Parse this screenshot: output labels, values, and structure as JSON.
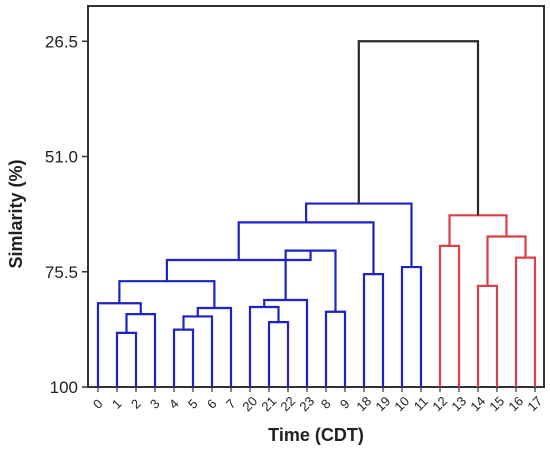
{
  "chart_data": {
    "type": "dendrogram",
    "xlabel": "Time (CDT)",
    "ylabel": "Simlarity (%)",
    "ylim": [
      100,
      19
    ],
    "yticks": [
      26.5,
      51.0,
      75.5,
      100
    ],
    "ytick_labels": [
      "26.5",
      "51.0",
      "75.5",
      "100"
    ],
    "leaf_order": [
      "0",
      "1",
      "2",
      "3",
      "4",
      "5",
      "6",
      "7",
      "20",
      "21",
      "22",
      "23",
      "8",
      "9",
      "18",
      "19",
      "10",
      "11",
      "12",
      "13",
      "14",
      "15",
      "16",
      "17"
    ],
    "colors": {
      "blue": "#1f22c4",
      "red": "#d94048",
      "black": "#2a2a2a",
      "axis": "#333333"
    },
    "merges": [
      {
        "a": "L1",
        "b": "L2",
        "height": 88.5,
        "color": "blue"
      },
      {
        "a": "C0",
        "b": "L3",
        "height": 84.5,
        "color": "blue"
      },
      {
        "a": "L0",
        "b": "C1",
        "height": 82.2,
        "color": "blue"
      },
      {
        "a": "L4",
        "b": "L5",
        "height": 87.8,
        "color": "blue"
      },
      {
        "a": "L6",
        "b": "C3",
        "height": 85.0,
        "color": "blue"
      },
      {
        "a": "C4",
        "b": "L7",
        "height": 83.2,
        "color": "blue"
      },
      {
        "a": "C2",
        "b": "C5",
        "height": 77.5,
        "color": "blue"
      },
      {
        "a": "L21",
        "b": "L22",
        "height": 86.2,
        "color": "blue"
      },
      {
        "a": "L20",
        "b": "C7",
        "height": 83.0,
        "color": "blue"
      },
      {
        "a": "C8",
        "b": "L23",
        "height": 81.5,
        "color": "blue"
      },
      {
        "a": "L8",
        "b": "L9",
        "height": 84.0,
        "color": "blue"
      },
      {
        "a": "C9",
        "b": "C10",
        "height": 71.0,
        "color": "blue"
      },
      {
        "a": "C6",
        "b": "C11",
        "height": 73.0,
        "color": "blue"
      },
      {
        "a": "L18",
        "b": "L19",
        "height": 76.0,
        "color": "blue"
      },
      {
        "a": "C12",
        "b": "C13",
        "height": 65.0,
        "color": "blue"
      },
      {
        "a": "L10",
        "b": "L11",
        "height": 74.5,
        "color": "blue"
      },
      {
        "a": "C14",
        "b": "C15",
        "height": 61.0,
        "color": "blue"
      },
      {
        "a": "L12",
        "b": "L13",
        "height": 70.0,
        "color": "red"
      },
      {
        "a": "L14",
        "b": "L15",
        "height": 78.5,
        "color": "red"
      },
      {
        "a": "L16",
        "b": "L17",
        "height": 72.5,
        "color": "red"
      },
      {
        "a": "C18",
        "b": "C19",
        "height": 68.0,
        "color": "red"
      },
      {
        "a": "C17",
        "b": "C20",
        "height": 63.5,
        "color": "red"
      },
      {
        "a": "C16",
        "b": "C21",
        "height": 26.5,
        "color": "black"
      }
    ]
  }
}
